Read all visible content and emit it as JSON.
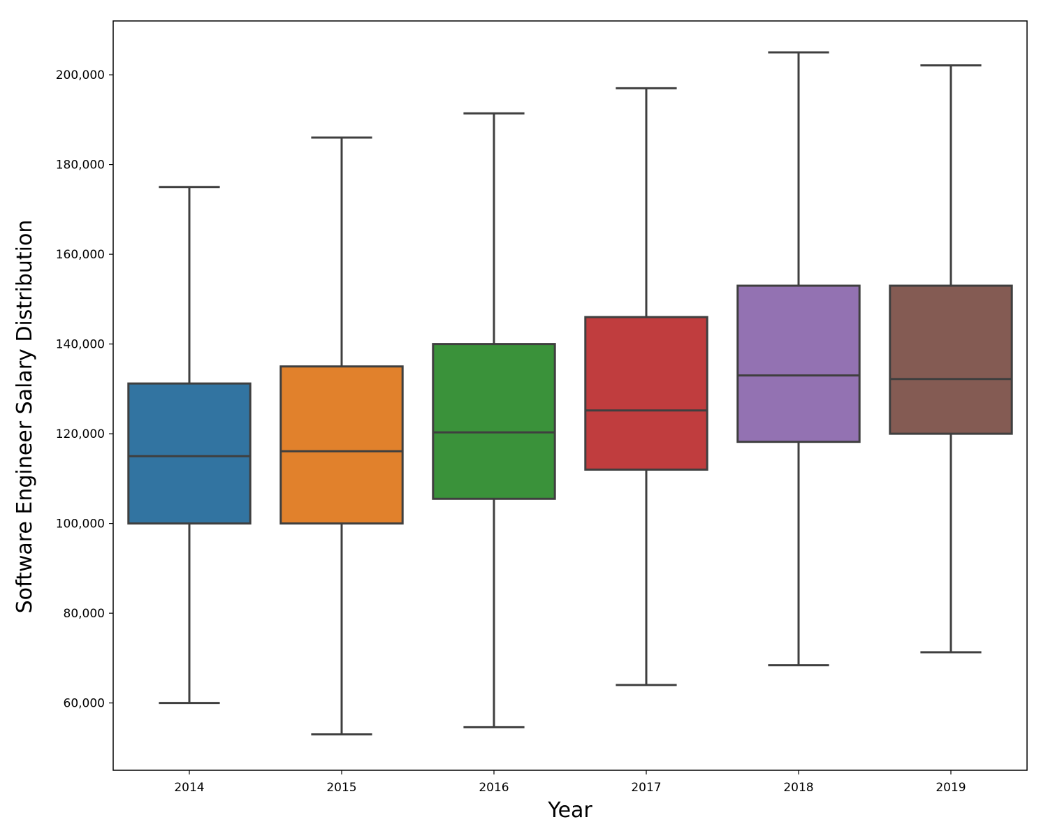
{
  "chart_data": {
    "type": "boxplot",
    "title": "",
    "xlabel": "Year",
    "ylabel": "Software Engineer Salary Distribution",
    "ylim": [
      45000,
      212000
    ],
    "yticks": [
      60000,
      80000,
      100000,
      120000,
      140000,
      160000,
      180000,
      200000
    ],
    "ytick_labels": [
      "60,000",
      "80,000",
      "100,000",
      "120,000",
      "140,000",
      "160,000",
      "180,000",
      "200,000"
    ],
    "categories": [
      "2014",
      "2015",
      "2016",
      "2017",
      "2018",
      "2019"
    ],
    "colors": [
      "#3274a1",
      "#e1812c",
      "#3a923a",
      "#c03d3e",
      "#9372b2",
      "#845b53"
    ],
    "edge_color": "#3f3f3f",
    "grid": false,
    "legend": "none",
    "boxes": [
      {
        "whislo": 60000,
        "q1": 100000,
        "med": 115000,
        "q3": 131200,
        "whishi": 175000
      },
      {
        "whislo": 53000,
        "q1": 100000,
        "med": 116100,
        "q3": 135000,
        "whishi": 186000
      },
      {
        "whislo": 54600,
        "q1": 105500,
        "med": 120300,
        "q3": 140000,
        "whishi": 191400
      },
      {
        "whislo": 64000,
        "q1": 112000,
        "med": 125200,
        "q3": 146000,
        "whishi": 197000
      },
      {
        "whislo": 68400,
        "q1": 118200,
        "med": 133000,
        "q3": 153000,
        "whishi": 205000
      },
      {
        "whislo": 71300,
        "q1": 120000,
        "med": 132200,
        "q3": 153000,
        "whishi": 202100
      }
    ]
  }
}
